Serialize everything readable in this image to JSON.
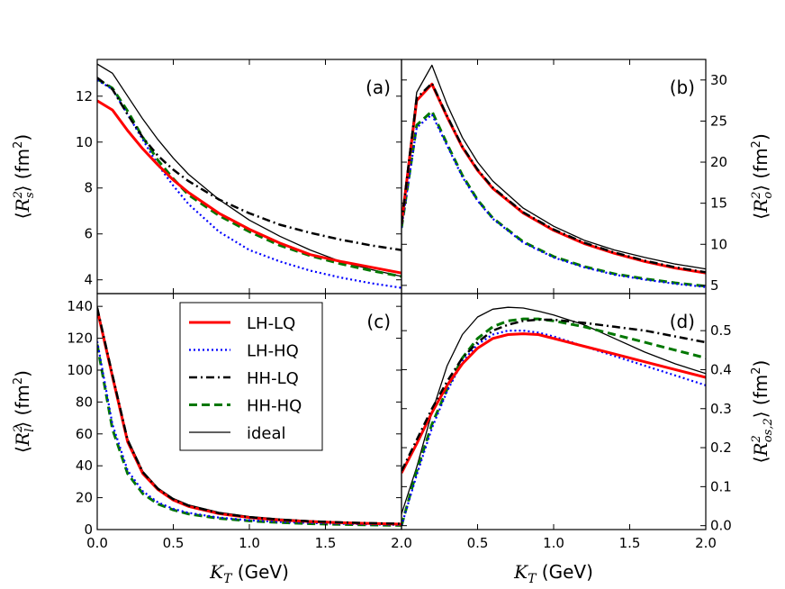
{
  "chart_data": [
    {
      "type": "line",
      "panel": "a",
      "panel_label": "(a)",
      "ylabel": "⟨R_s^2⟩ (fm^2)",
      "ylabel_parts": {
        "open": "⟨",
        "sym": "R",
        "sup": "2",
        "sub": "s",
        "close": "⟩",
        "unit": " (fm",
        "unit_sup": "2",
        "unit_close": ")"
      },
      "xlim": [
        0.0,
        2.0
      ],
      "ylim": [
        3.4,
        13.6
      ],
      "yticks": [
        "4",
        "6",
        "8",
        "10",
        "12"
      ],
      "ytick_values": [
        4,
        6,
        8,
        10,
        12
      ],
      "x": [
        0.0,
        0.1,
        0.2,
        0.3,
        0.4,
        0.5,
        0.6,
        0.8,
        1.0,
        1.2,
        1.4,
        1.6,
        1.8,
        2.0
      ],
      "series": [
        {
          "name": "LH-LQ",
          "values": [
            11.8,
            11.4,
            10.5,
            9.7,
            9.0,
            8.35,
            7.8,
            6.9,
            6.2,
            5.6,
            5.1,
            4.8,
            4.55,
            4.3
          ]
        },
        {
          "name": "LH-HQ",
          "values": [
            12.7,
            12.3,
            11.2,
            10.1,
            9.0,
            8.1,
            7.3,
            6.1,
            5.3,
            4.8,
            4.4,
            4.1,
            3.85,
            3.65
          ]
        },
        {
          "name": "HH-LQ",
          "values": [
            12.8,
            12.3,
            11.2,
            10.2,
            9.4,
            8.8,
            8.3,
            7.5,
            6.9,
            6.4,
            6.05,
            5.75,
            5.5,
            5.3
          ]
        },
        {
          "name": "HH-HQ",
          "values": [
            12.75,
            12.35,
            11.35,
            10.2,
            9.2,
            8.4,
            7.7,
            6.8,
            6.1,
            5.5,
            5.05,
            4.7,
            4.4,
            4.15
          ]
        },
        {
          "name": "ideal",
          "values": [
            13.4,
            13.0,
            12.0,
            11.0,
            10.1,
            9.3,
            8.6,
            7.5,
            6.6,
            5.9,
            5.3,
            4.8,
            4.45,
            4.15
          ]
        }
      ]
    },
    {
      "type": "line",
      "panel": "b",
      "panel_label": "(b)",
      "ylabel": "⟨R_o^2⟩ (fm^2)",
      "ylabel_parts": {
        "open": "⟨",
        "sym": "R",
        "sup": "2",
        "sub": "o",
        "close": "⟩",
        "unit": " (fm",
        "unit_sup": "2",
        "unit_close": ")"
      },
      "xlim": [
        0.0,
        2.0
      ],
      "ylim": [
        4.0,
        32.5
      ],
      "yticks": [
        "5",
        "10",
        "15",
        "20",
        "25",
        "30"
      ],
      "ytick_values": [
        5,
        10,
        15,
        20,
        25,
        30
      ],
      "x": [
        0.0,
        0.1,
        0.2,
        0.3,
        0.4,
        0.5,
        0.6,
        0.8,
        1.0,
        1.2,
        1.4,
        1.6,
        1.8,
        2.0
      ],
      "series": [
        {
          "name": "LH-LQ",
          "values": [
            12.5,
            27.5,
            29.5,
            25.5,
            21.8,
            19.0,
            16.8,
            13.8,
            11.7,
            10.1,
            8.9,
            7.9,
            7.1,
            6.5
          ]
        },
        {
          "name": "LH-HQ",
          "values": [
            12.0,
            24.2,
            25.8,
            22.0,
            18.2,
            15.3,
            13.1,
            10.2,
            8.4,
            7.2,
            6.3,
            5.7,
            5.2,
            4.8
          ]
        },
        {
          "name": "HH-LQ",
          "values": [
            12.5,
            27.8,
            29.6,
            25.6,
            21.9,
            19.1,
            16.9,
            13.9,
            11.8,
            10.2,
            9.0,
            8.0,
            7.2,
            6.6
          ]
        },
        {
          "name": "HH-HQ",
          "values": [
            12.0,
            24.5,
            26.2,
            22.2,
            18.4,
            15.4,
            13.2,
            10.3,
            8.5,
            7.3,
            6.4,
            5.8,
            5.3,
            4.9
          ]
        },
        {
          "name": "ideal",
          "values": [
            13.0,
            28.5,
            31.8,
            27.0,
            23.0,
            20.0,
            17.7,
            14.4,
            12.2,
            10.5,
            9.3,
            8.4,
            7.6,
            7.0
          ]
        }
      ]
    },
    {
      "type": "line",
      "panel": "c",
      "panel_label": "(c)",
      "ylabel": "⟨R_l^2⟩ (fm^2)",
      "ylabel_parts": {
        "open": "⟨",
        "sym": "R",
        "sup": "2",
        "sub": "l",
        "close": "⟩",
        "unit": " (fm",
        "unit_sup": "2",
        "unit_close": ")"
      },
      "xlabel": "K_T (GeV)",
      "xlabel_parts": {
        "sym": "K",
        "sub": "T",
        "unit": " (GeV)"
      },
      "xlim": [
        0.0,
        2.0
      ],
      "ylim": [
        0,
        148
      ],
      "xticks": [
        "0.0",
        "0.5",
        "1.0",
        "1.5",
        "2.0"
      ],
      "xtick_values": [
        0.0,
        0.5,
        1.0,
        1.5,
        2.0
      ],
      "yticks": [
        "0",
        "20",
        "40",
        "60",
        "80",
        "100",
        "120",
        "140"
      ],
      "ytick_values": [
        0,
        20,
        40,
        60,
        80,
        100,
        120,
        140
      ],
      "x": [
        0.0,
        0.1,
        0.2,
        0.3,
        0.4,
        0.5,
        0.6,
        0.8,
        1.0,
        1.2,
        1.4,
        1.6,
        1.8,
        2.0
      ],
      "series": [
        {
          "name": "LH-LQ",
          "values": [
            138,
            96,
            55,
            35,
            25,
            18.5,
            14.5,
            10.0,
            7.5,
            6.0,
            5.0,
            4.3,
            3.8,
            3.4
          ]
        },
        {
          "name": "LH-HQ",
          "values": [
            118,
            66,
            37,
            24,
            17,
            13,
            10.5,
            7.5,
            5.8,
            4.8,
            4.1,
            3.6,
            3.2,
            2.9
          ]
        },
        {
          "name": "HH-LQ",
          "values": [
            139,
            97,
            56,
            36,
            25.5,
            19,
            15,
            10.3,
            7.8,
            6.2,
            5.2,
            4.5,
            4.0,
            3.6
          ]
        },
        {
          "name": "HH-HQ",
          "values": [
            116,
            63,
            35,
            22.5,
            16,
            12.3,
            9.8,
            7.0,
            5.4,
            4.4,
            3.7,
            3.2,
            2.9,
            2.6
          ]
        },
        {
          "name": "ideal",
          "values": [
            140,
            98,
            57,
            36.5,
            26,
            19.5,
            15.5,
            10.8,
            8.2,
            6.6,
            5.5,
            4.7,
            4.1,
            3.7
          ]
        }
      ]
    },
    {
      "type": "line",
      "panel": "d",
      "panel_label": "(d)",
      "ylabel": "⟨R_os,2^2⟩ (fm^2)",
      "ylabel_parts": {
        "open": "⟨",
        "sym": "R",
        "sup": "2",
        "sub": "os,2",
        "close": "⟩",
        "unit": " (fm",
        "unit_sup": "2",
        "unit_close": ")"
      },
      "xlabel": "K_T (GeV)",
      "xlabel_parts": {
        "sym": "K",
        "sub": "T",
        "unit": " (GeV)"
      },
      "xlim": [
        0.0,
        2.0
      ],
      "ylim": [
        -0.01,
        0.595
      ],
      "xticks": [
        "0.5",
        "1.0",
        "1.5",
        "2.0"
      ],
      "xtick_values": [
        0.5,
        1.0,
        1.5,
        2.0
      ],
      "yticks": [
        "0.0",
        "0.1",
        "0.2",
        "0.3",
        "0.4",
        "0.5"
      ],
      "ytick_values": [
        0.0,
        0.1,
        0.2,
        0.3,
        0.4,
        0.5
      ],
      "x": [
        0.0,
        0.1,
        0.2,
        0.3,
        0.4,
        0.5,
        0.6,
        0.7,
        0.8,
        0.9,
        1.0,
        1.2,
        1.4,
        1.6,
        1.8,
        2.0
      ],
      "series": [
        {
          "name": "LH-LQ",
          "values": [
            0.135,
            0.21,
            0.29,
            0.36,
            0.415,
            0.455,
            0.48,
            0.49,
            0.492,
            0.49,
            0.48,
            0.46,
            0.44,
            0.42,
            0.4,
            0.38
          ]
        },
        {
          "name": "LH-HQ",
          "values": [
            0.0,
            0.13,
            0.25,
            0.345,
            0.42,
            0.465,
            0.49,
            0.5,
            0.5,
            0.495,
            0.485,
            0.46,
            0.435,
            0.41,
            0.385,
            0.36
          ]
        },
        {
          "name": "HH-LQ",
          "values": [
            0.14,
            0.22,
            0.3,
            0.37,
            0.43,
            0.47,
            0.5,
            0.515,
            0.525,
            0.528,
            0.528,
            0.52,
            0.51,
            0.5,
            0.485,
            0.47
          ]
        },
        {
          "name": "HH-HQ",
          "values": [
            0.0,
            0.14,
            0.26,
            0.35,
            0.43,
            0.48,
            0.51,
            0.525,
            0.53,
            0.53,
            0.525,
            0.51,
            0.49,
            0.47,
            0.45,
            0.43
          ]
        },
        {
          "name": "ideal",
          "values": [
            0.03,
            0.15,
            0.29,
            0.41,
            0.49,
            0.535,
            0.555,
            0.56,
            0.558,
            0.55,
            0.54,
            0.515,
            0.48,
            0.445,
            0.415,
            0.39
          ]
        }
      ]
    }
  ],
  "legend": {
    "location": "upper-right of panel (c)",
    "entries": [
      {
        "name": "LH-LQ",
        "label": "LH-LQ"
      },
      {
        "name": "LH-HQ",
        "label": "LH-HQ"
      },
      {
        "name": "HH-LQ",
        "label": "HH-LQ"
      },
      {
        "name": "HH-HQ",
        "label": "HH-HQ"
      },
      {
        "name": "ideal",
        "label": "ideal"
      }
    ]
  },
  "styles": {
    "LH-LQ": {
      "color": "#ff0000",
      "dash": "none",
      "width": 3
    },
    "LH-HQ": {
      "color": "#0000ff",
      "dash": "2,3",
      "width": 2.2
    },
    "HH-LQ": {
      "color": "#000000",
      "dash": "9,4,2,4",
      "width": 2.5
    },
    "HH-HQ": {
      "color": "#007700",
      "dash": "9,5",
      "width": 3
    },
    "ideal": {
      "color": "#000000",
      "dash": "none",
      "width": 1.3
    }
  }
}
